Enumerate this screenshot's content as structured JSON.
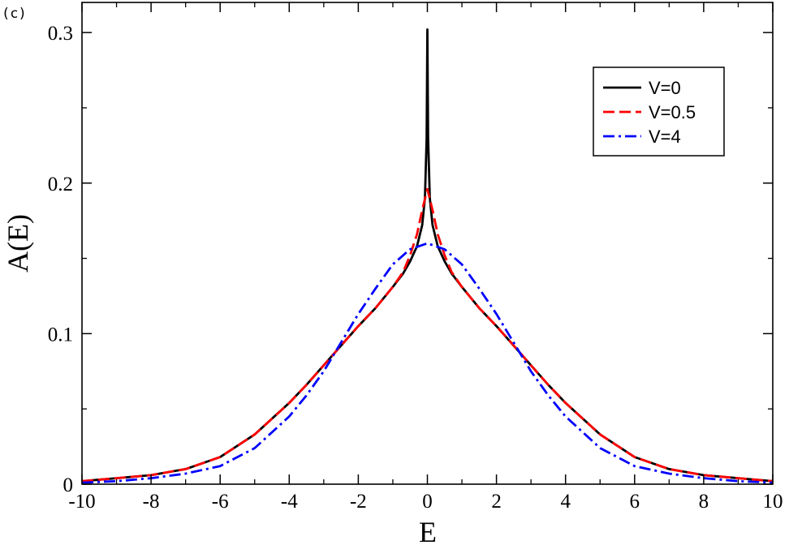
{
  "panel_label": "(c)",
  "colors": {
    "V=0": "#000000",
    "V=0.5": "#ff0000",
    "V=4": "#0000ff"
  },
  "chart_data": {
    "type": "line",
    "xlabel": "E",
    "ylabel": "A(E)",
    "xlim": [
      -10,
      10
    ],
    "ylim": [
      0,
      0.32
    ],
    "grid": false,
    "legend_position": "top-right",
    "x_ticks": [
      -10,
      -8,
      -6,
      -4,
      -2,
      0,
      2,
      4,
      6,
      8,
      10
    ],
    "x_tick_labels": [
      "-10",
      "-8",
      "-6",
      "-4",
      "-2",
      "0",
      "2",
      "4",
      "6",
      "8",
      "10"
    ],
    "y_ticks": [
      0,
      0.1,
      0.2,
      0.3
    ],
    "y_tick_labels": [
      "0",
      "0.1",
      "0.2",
      "0.3"
    ],
    "series": [
      {
        "name": "V=0",
        "style": "solid",
        "color": "#000000",
        "x": [
          -10,
          -9,
          -8,
          -7,
          -6,
          -5,
          -4,
          -3.5,
          -3,
          -2.5,
          -2,
          -1.5,
          -1,
          -0.7,
          -0.5,
          -0.3,
          -0.15,
          -0.07,
          -0.02,
          0,
          0.02,
          0.07,
          0.15,
          0.3,
          0.5,
          0.7,
          1,
          1.5,
          2,
          2.5,
          3,
          3.5,
          4,
          5,
          6,
          7,
          8,
          9,
          10
        ],
        "y": [
          0.002,
          0.004,
          0.006,
          0.01,
          0.018,
          0.033,
          0.054,
          0.066,
          0.079,
          0.092,
          0.105,
          0.117,
          0.131,
          0.14,
          0.148,
          0.158,
          0.172,
          0.19,
          0.23,
          0.302,
          0.23,
          0.19,
          0.172,
          0.158,
          0.148,
          0.14,
          0.131,
          0.117,
          0.105,
          0.092,
          0.079,
          0.066,
          0.054,
          0.033,
          0.018,
          0.01,
          0.006,
          0.004,
          0.002
        ]
      },
      {
        "name": "V=0.5",
        "style": "dashed",
        "color": "#ff0000",
        "x": [
          -10,
          -9,
          -8,
          -7,
          -6,
          -5,
          -4,
          -3.5,
          -3,
          -2.5,
          -2,
          -1.5,
          -1,
          -0.7,
          -0.5,
          -0.3,
          -0.15,
          0,
          0.15,
          0.3,
          0.5,
          0.7,
          1,
          1.5,
          2,
          2.5,
          3,
          3.5,
          4,
          5,
          6,
          7,
          8,
          9,
          10
        ],
        "y": [
          0.002,
          0.004,
          0.006,
          0.01,
          0.018,
          0.033,
          0.054,
          0.066,
          0.079,
          0.092,
          0.105,
          0.117,
          0.131,
          0.141,
          0.152,
          0.166,
          0.182,
          0.196,
          0.182,
          0.166,
          0.152,
          0.141,
          0.131,
          0.117,
          0.105,
          0.092,
          0.079,
          0.066,
          0.054,
          0.033,
          0.018,
          0.01,
          0.006,
          0.004,
          0.002
        ]
      },
      {
        "name": "V=4",
        "style": "dash-dot",
        "color": "#0000ff",
        "x": [
          -10,
          -9,
          -8,
          -7,
          -6,
          -5,
          -4,
          -3.5,
          -3,
          -2.5,
          -2,
          -1.5,
          -1,
          -0.5,
          0,
          0.5,
          1,
          1.5,
          2,
          2.5,
          3,
          3.5,
          4,
          5,
          6,
          7,
          8,
          9,
          10
        ],
        "y": [
          0.001,
          0.002,
          0.004,
          0.007,
          0.012,
          0.024,
          0.045,
          0.059,
          0.075,
          0.094,
          0.113,
          0.13,
          0.146,
          0.156,
          0.16,
          0.156,
          0.146,
          0.13,
          0.113,
          0.094,
          0.075,
          0.059,
          0.045,
          0.024,
          0.012,
          0.007,
          0.004,
          0.002,
          0.001
        ]
      }
    ]
  }
}
